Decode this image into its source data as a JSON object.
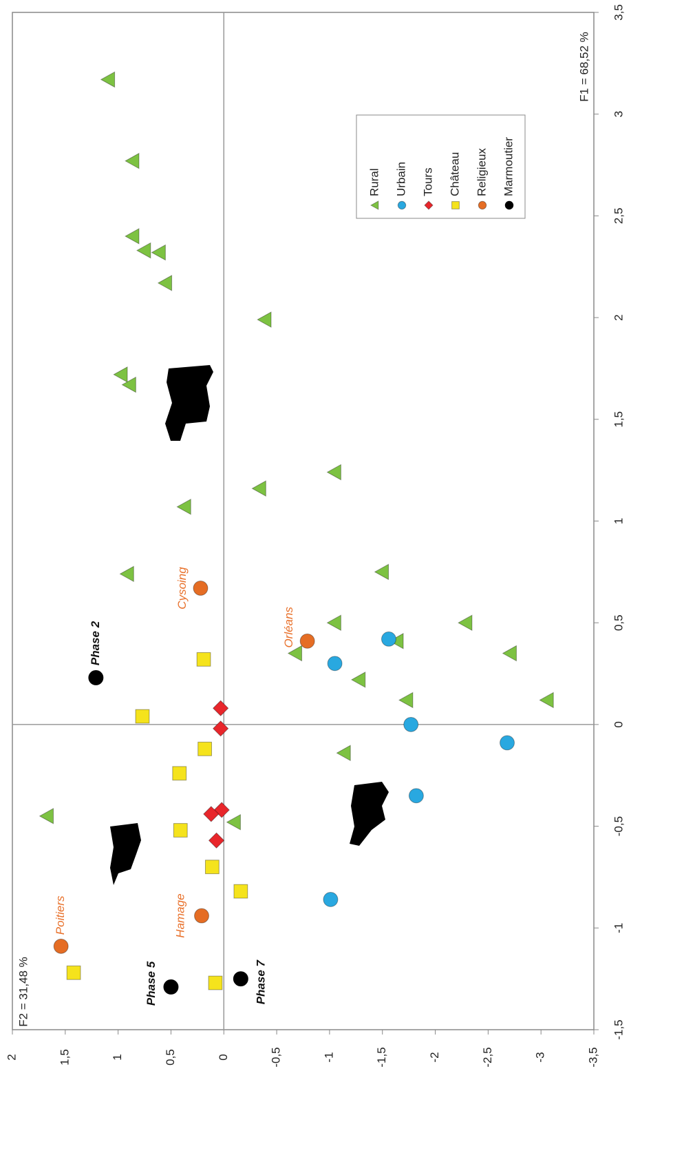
{
  "chart_data": {
    "type": "scatter",
    "xlabel": "F1 = 68,52 %",
    "ylabel": "F2 = 31,48 %",
    "xlim": [
      -1.5,
      3.5
    ],
    "ylim": [
      -3.5,
      2
    ],
    "xticks": [
      {
        "value": -1.5,
        "label": "-1,5"
      },
      -1,
      {
        "value": -0.5,
        "label": "-0,5"
      },
      0,
      {
        "value": 0.5,
        "label": "0,5"
      },
      1,
      {
        "value": 1.5,
        "label": "1,5"
      },
      2,
      {
        "value": 2.5,
        "label": "2,5"
      },
      3,
      {
        "value": 3.5,
        "label": "3,5"
      }
    ],
    "yticks": [
      2,
      {
        "value": 1.5,
        "label": "1,5"
      },
      1,
      {
        "value": 0.5,
        "label": "0,5"
      },
      0,
      {
        "value": -0.5,
        "label": "-0,5"
      },
      -1,
      {
        "value": -1.5,
        "label": "-1,5"
      },
      -2,
      {
        "value": -2.5,
        "label": "-2,5"
      },
      -3,
      {
        "value": -3.5,
        "label": "-3,5"
      }
    ],
    "zero_lines": true,
    "legend": "lower right",
    "series": [
      {
        "name": "Rural",
        "color": "#7dc242",
        "marker": "triangle",
        "x": [
          3.17,
          2.77,
          2.4,
          2.33,
          2.32,
          2.17,
          1.99,
          1.72,
          1.67,
          1.24,
          1.16,
          1.07,
          0.75,
          0.74,
          0.5,
          0.5,
          0.35,
          0.41,
          0.35,
          0.22,
          0.12,
          0.12,
          -0.14,
          -0.45,
          -0.48
        ],
        "values": [
          1.09,
          0.86,
          0.86,
          0.75,
          0.61,
          0.55,
          -0.39,
          0.97,
          0.89,
          -1.05,
          -0.34,
          0.37,
          -1.5,
          0.91,
          -1.05,
          -2.29,
          -0.68,
          -1.64,
          -2.71,
          -1.28,
          -1.73,
          -3.06,
          -1.14,
          1.67,
          -0.1
        ]
      },
      {
        "name": "Urbain",
        "color": "#29a8e0",
        "marker": "circle",
        "x": [
          0.42,
          0.3,
          0.0,
          -0.09,
          -0.35,
          -0.86
        ],
        "values": [
          -1.56,
          -1.05,
          -1.77,
          -2.68,
          -1.82,
          -1.01
        ]
      },
      {
        "name": "Tours",
        "color": "#e8262b",
        "marker": "diamond",
        "x": [
          0.08,
          -0.02,
          -0.42,
          -0.44,
          -0.57
        ],
        "values": [
          0.03,
          0.03,
          0.02,
          0.12,
          0.07
        ]
      },
      {
        "name": "Château",
        "color": "#f5e31c",
        "marker": "square",
        "x": [
          0.32,
          0.04,
          -0.12,
          -0.24,
          -0.52,
          -0.7,
          -0.82,
          -1.22,
          -1.27
        ],
        "values": [
          0.19,
          0.77,
          0.18,
          0.42,
          0.41,
          0.11,
          -0.16,
          1.42,
          0.08
        ]
      },
      {
        "name": "Religieux",
        "color": "#e56d24",
        "marker": "circle",
        "x": [
          0.67,
          0.41,
          -0.94,
          -1.09
        ],
        "values": [
          0.22,
          -0.79,
          0.21,
          1.54
        ],
        "labels": [
          "Cysoing",
          "Orléans",
          "Hamage",
          "Poitiers"
        ]
      },
      {
        "name": "Marmoutier",
        "color": "#000000",
        "marker": "circle",
        "x": [
          0.23,
          -1.29,
          -1.25
        ],
        "values": [
          1.21,
          0.5,
          -0.16
        ],
        "labels": [
          "Phase 2",
          "Phase 5",
          "Phase 7"
        ]
      }
    ]
  }
}
